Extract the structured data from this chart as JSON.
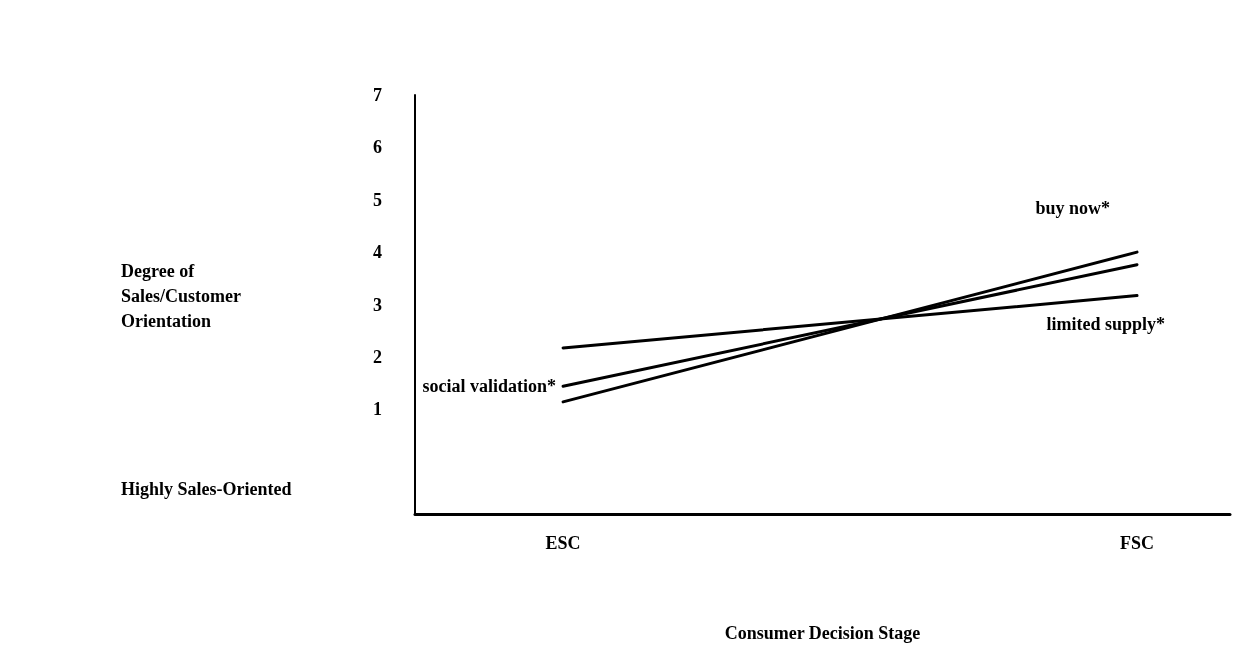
{
  "chart_data": {
    "type": "line",
    "xlabel": "Consumer Decision Stage",
    "annotations": [
      "Degree of\nSales/Customer\nOrientation",
      "Highly Sales-Oriented"
    ],
    "categories": [
      "ESC",
      "FSC"
    ],
    "series": [
      {
        "name": "buy now*",
        "color": "#000000",
        "values": [
          1.14,
          4.0
        ]
      },
      {
        "name": "social validation*",
        "color": "#000000",
        "values": [
          1.44,
          3.76
        ]
      },
      {
        "name": "limited supply*",
        "color": "#000000",
        "values": [
          2.17,
          3.17
        ]
      }
    ],
    "ylim": [
      -1,
      7
    ],
    "yticks": [
      1,
      2,
      3,
      4,
      5,
      6,
      7
    ],
    "grid": false,
    "legend": false,
    "marker": "none",
    "line_style": "solid"
  }
}
